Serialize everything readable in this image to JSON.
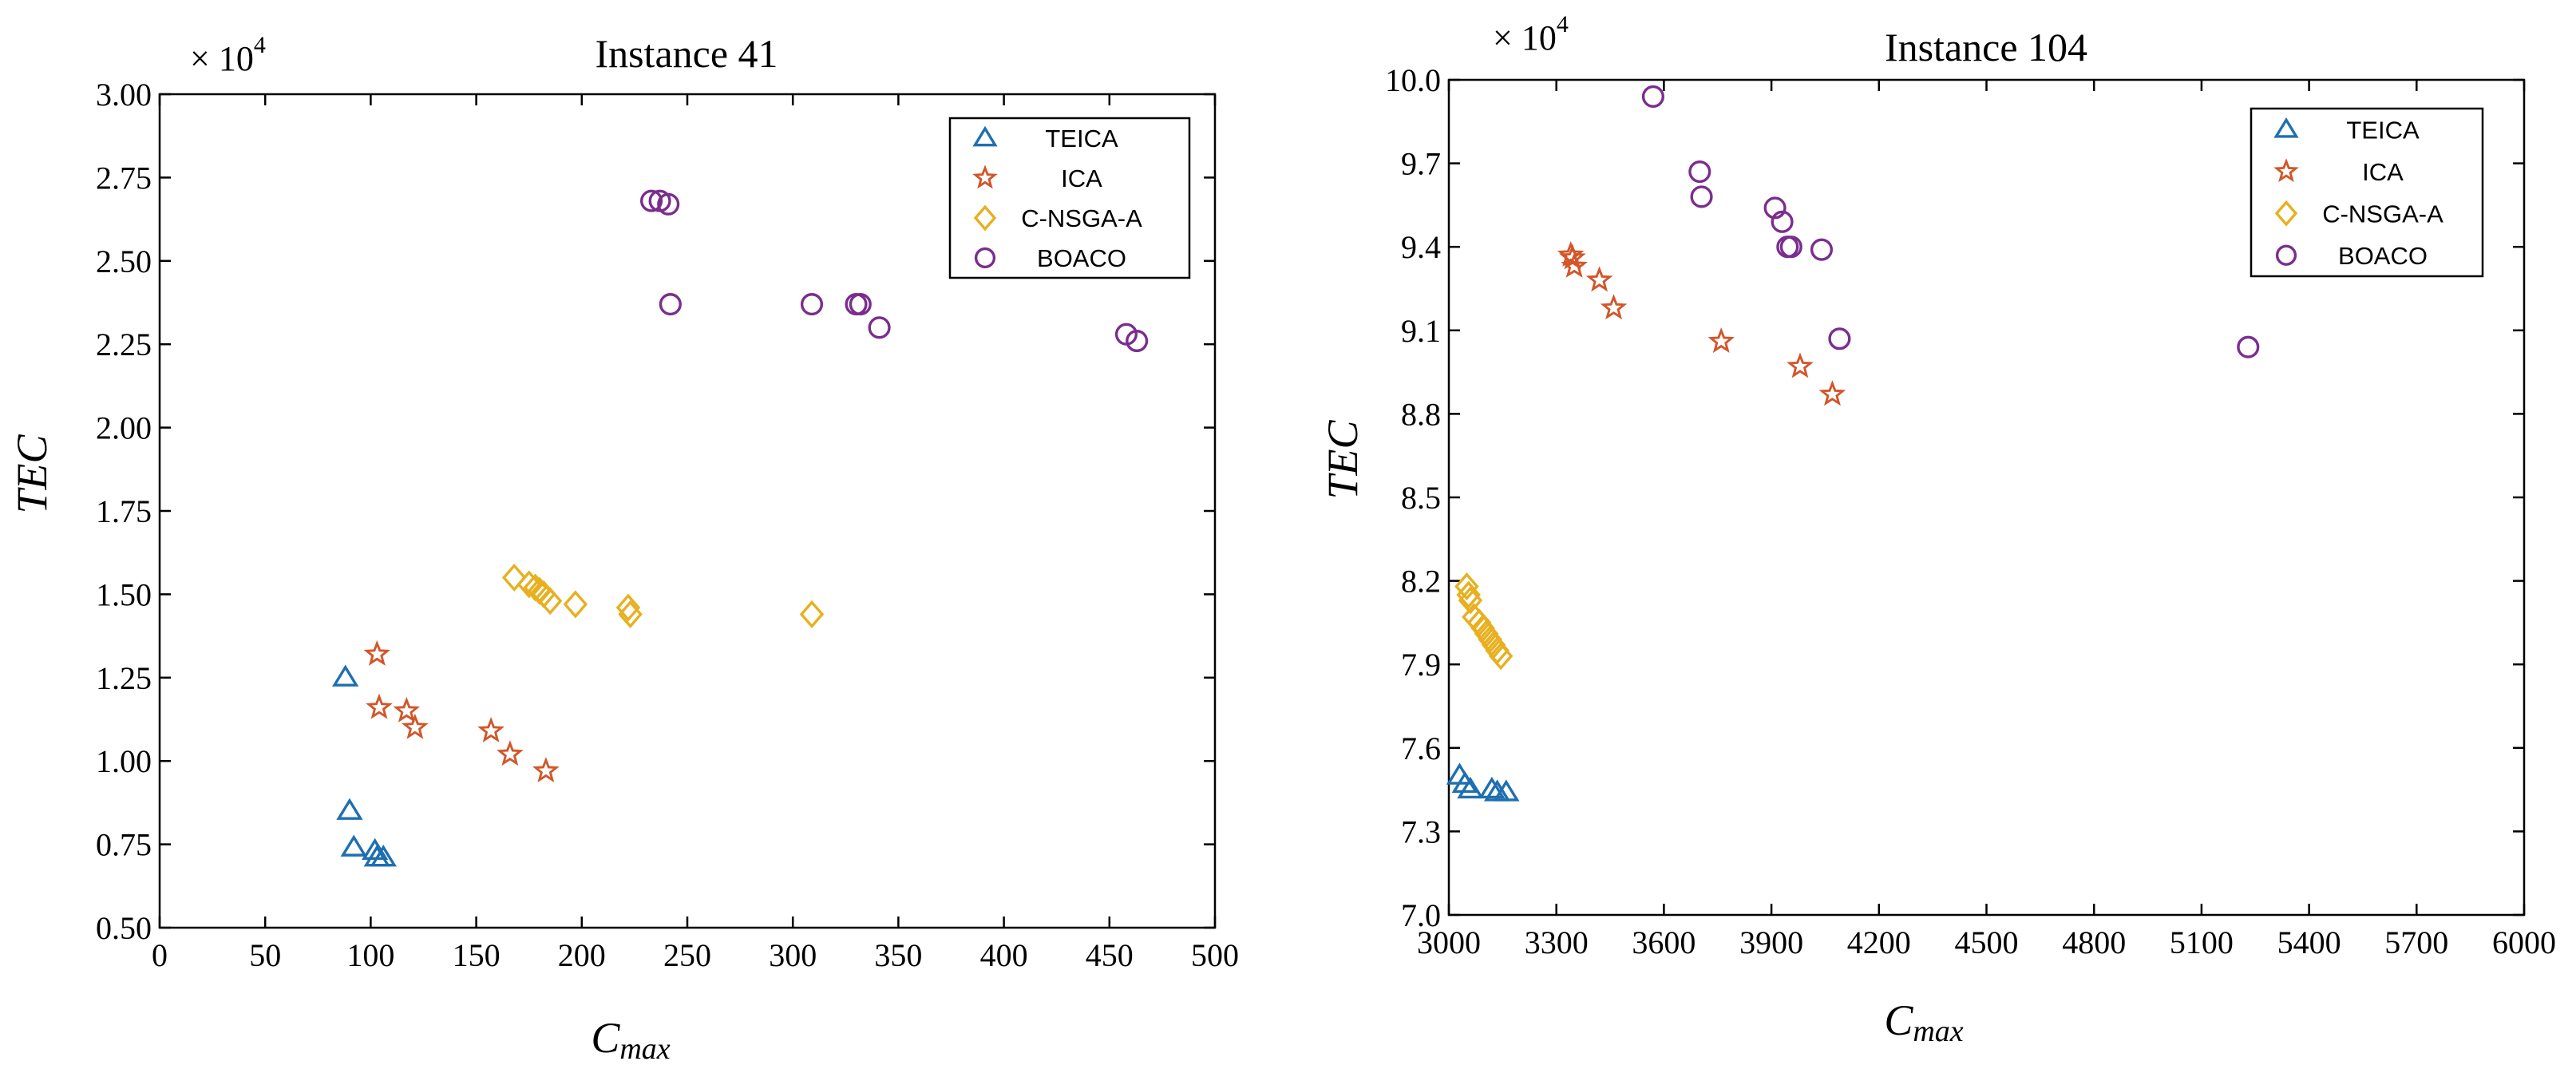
{
  "chart_data": [
    {
      "type": "scatter",
      "title": "Instance 41",
      "xlabel": "C",
      "xlabel_sub": "max",
      "ylabel": "TEC",
      "y_multiplier": "× 10",
      "y_multiplier_exp": "4",
      "xlim": [
        0,
        500
      ],
      "ylim": [
        0.5,
        3.0
      ],
      "xticks": [
        "0",
        "50",
        "100",
        "150",
        "200",
        "250",
        "300",
        "350",
        "400",
        "450",
        "500"
      ],
      "yticks": [
        "0.50",
        "0.75",
        "1.00",
        "1.25",
        "1.50",
        "1.75",
        "2.00",
        "2.25",
        "2.50",
        "2.75",
        "3.00"
      ],
      "grid": false,
      "legend_position": "top-right",
      "series": [
        {
          "name": "TEICA",
          "marker": "triangle",
          "color": "#1f6fb0",
          "points": [
            [
              88,
              1.25
            ],
            [
              90,
              0.85
            ],
            [
              92,
              0.74
            ],
            [
              102,
              0.73
            ],
            [
              103,
              0.71
            ],
            [
              106,
              0.71
            ]
          ]
        },
        {
          "name": "ICA",
          "marker": "star",
          "color": "#d2562a",
          "points": [
            [
              103,
              1.32
            ],
            [
              104,
              1.16
            ],
            [
              117,
              1.15
            ],
            [
              121,
              1.1
            ],
            [
              157,
              1.09
            ],
            [
              166,
              1.02
            ],
            [
              183,
              0.97
            ]
          ]
        },
        {
          "name": "C-NSGA-A",
          "marker": "diamond",
          "color": "#e8b020",
          "points": [
            [
              168,
              1.55
            ],
            [
              175,
              1.53
            ],
            [
              178,
              1.52
            ],
            [
              180,
              1.51
            ],
            [
              182,
              1.5
            ],
            [
              185,
              1.48
            ],
            [
              197,
              1.47
            ],
            [
              222,
              1.46
            ],
            [
              223,
              1.44
            ],
            [
              309,
              1.44
            ]
          ]
        },
        {
          "name": "BOACO",
          "marker": "circle",
          "color": "#7b2d8e",
          "points": [
            [
              233,
              2.68
            ],
            [
              237,
              2.68
            ],
            [
              241,
              2.67
            ],
            [
              242,
              2.37
            ],
            [
              309,
              2.37
            ],
            [
              330,
              2.37
            ],
            [
              332,
              2.37
            ],
            [
              341,
              2.3
            ],
            [
              458,
              2.28
            ],
            [
              463,
              2.26
            ]
          ]
        }
      ]
    },
    {
      "type": "scatter",
      "title": "Instance 104",
      "xlabel": "C",
      "xlabel_sub": "max",
      "ylabel": "TEC",
      "y_multiplier": "× 10",
      "y_multiplier_exp": "4",
      "xlim": [
        3000,
        6000
      ],
      "ylim": [
        7.0,
        10.0
      ],
      "xticks": [
        "3000",
        "3300",
        "3600",
        "3900",
        "4200",
        "4500",
        "4800",
        "5100",
        "5400",
        "5700",
        "6000"
      ],
      "yticks": [
        "7.0",
        "7.3",
        "7.6",
        "7.9",
        "8.2",
        "8.5",
        "8.8",
        "9.1",
        "9.4",
        "9.7",
        "10.0"
      ],
      "grid": false,
      "legend_position": "top-right",
      "series": [
        {
          "name": "TEICA",
          "marker": "triangle",
          "color": "#1f6fb0",
          "points": [
            [
              3030,
              7.5
            ],
            [
              3045,
              7.47
            ],
            [
              3060,
              7.45
            ],
            [
              3120,
              7.45
            ],
            [
              3135,
              7.44
            ],
            [
              3160,
              7.44
            ]
          ]
        },
        {
          "name": "ICA",
          "marker": "star",
          "color": "#d2562a",
          "points": [
            [
              3340,
              9.37
            ],
            [
              3345,
              9.36
            ],
            [
              3350,
              9.33
            ],
            [
              3420,
              9.28
            ],
            [
              3460,
              9.18
            ],
            [
              3760,
              9.06
            ],
            [
              3980,
              8.97
            ],
            [
              4070,
              8.87
            ]
          ]
        },
        {
          "name": "C-NSGA-A",
          "marker": "diamond",
          "color": "#e8b020",
          "points": [
            [
              3050,
              8.18
            ],
            [
              3055,
              8.15
            ],
            [
              3060,
              8.13
            ],
            [
              3070,
              8.07
            ],
            [
              3085,
              8.05
            ],
            [
              3095,
              8.03
            ],
            [
              3105,
              8.01
            ],
            [
              3115,
              7.99
            ],
            [
              3125,
              7.97
            ],
            [
              3135,
              7.95
            ],
            [
              3145,
              7.93
            ]
          ]
        },
        {
          "name": "BOACO",
          "marker": "circle",
          "color": "#7b2d8e",
          "points": [
            [
              3570,
              9.94
            ],
            [
              3700,
              9.67
            ],
            [
              3705,
              9.58
            ],
            [
              3910,
              9.54
            ],
            [
              3930,
              9.49
            ],
            [
              3945,
              9.4
            ],
            [
              3955,
              9.4
            ],
            [
              4040,
              9.39
            ],
            [
              4090,
              9.07
            ],
            [
              5230,
              9.04
            ]
          ]
        }
      ]
    }
  ]
}
